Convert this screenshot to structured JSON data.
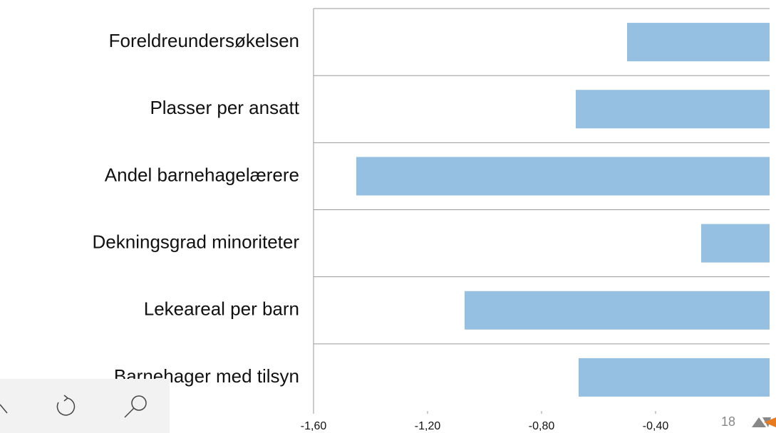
{
  "chart_data": {
    "type": "bar",
    "orientation": "horizontal",
    "categories": [
      "Foreldreundersøkelsen",
      "Plasser per ansatt",
      "Andel barnehagelærere",
      "Dekningsgrad minoriteter",
      "Lekeareal per barn",
      "Barnehager med tilsyn"
    ],
    "values": [
      -0.5,
      -0.68,
      -1.45,
      -0.24,
      -1.07,
      -0.67
    ],
    "color": "#95c0e1",
    "xlim": [
      -1.6,
      0
    ],
    "xticks": [
      {
        "value": -1.6,
        "label": "-1,60"
      },
      {
        "value": -1.2,
        "label": "-1,20"
      },
      {
        "value": -0.8,
        "label": "-0,80"
      },
      {
        "value": -0.4,
        "label": "-0,40"
      }
    ],
    "page_number": "18"
  }
}
